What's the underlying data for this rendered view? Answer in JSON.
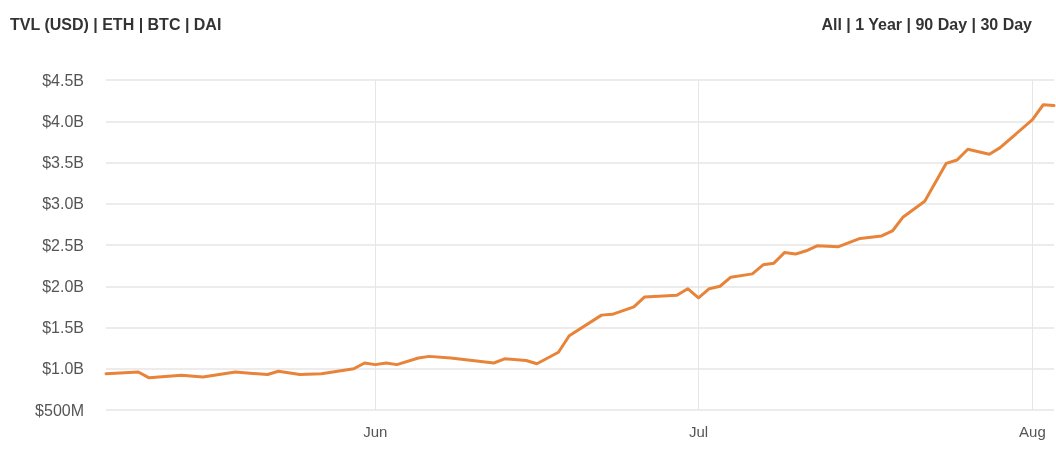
{
  "chart_data": {
    "type": "line",
    "annotations": [
      "TVL (USD) | ETH | BTC | DAI",
      "All | 1 Year | 90 Day | 30 Day"
    ],
    "x": [
      "--05-07",
      "--05-10",
      "--05-11",
      "--05-14",
      "--05-16",
      "--05-19",
      "--05-22",
      "--05-23",
      "--05-25",
      "--05-27",
      "--05-30",
      "--05-31",
      "--06-01",
      "--06-02",
      "--06-03",
      "--06-05",
      "--06-06",
      "--06-08",
      "--06-10",
      "--06-12",
      "--06-13",
      "--06-15",
      "--06-16",
      "--06-18",
      "--06-19",
      "--06-22",
      "--06-23",
      "--06-25",
      "--06-26",
      "--06-29",
      "--06-30",
      "--07-01",
      "--07-02",
      "--07-03",
      "--07-04",
      "--07-06",
      "--07-07",
      "--07-08",
      "--07-09",
      "--07-10",
      "--07-11",
      "--07-12",
      "--07-14",
      "--07-16",
      "--07-18",
      "--07-19",
      "--07-20",
      "--07-22",
      "--07-24",
      "--07-25",
      "--07-26",
      "--07-28",
      "--07-29",
      "--08-01",
      "--08-02",
      "--08-03"
    ],
    "series": [
      {
        "color": "#e8843a",
        "values": [
          940000000,
          960000000,
          890000000,
          920000000,
          900000000,
          960000000,
          930000000,
          970000000,
          930000000,
          940000000,
          1000000000,
          1070000000,
          1050000000,
          1070000000,
          1050000000,
          1130000000,
          1150000000,
          1130000000,
          1100000000,
          1070000000,
          1120000000,
          1100000000,
          1060000000,
          1200000000,
          1400000000,
          1650000000,
          1660000000,
          1750000000,
          1870000000,
          1890000000,
          1970000000,
          1860000000,
          1970000000,
          2000000000,
          2110000000,
          2150000000,
          2260000000,
          2280000000,
          2410000000,
          2390000000,
          2430000000,
          2490000000,
          2480000000,
          2580000000,
          2610000000,
          2670000000,
          2840000000,
          3030000000,
          3490000000,
          3530000000,
          3660000000,
          3600000000,
          3680000000,
          4020000000,
          4200000000,
          4190000000
        ]
      }
    ],
    "xlim": [
      "--05-07",
      "--08-03"
    ],
    "xticks": [
      {
        "value": "--06-01",
        "label": "Jun"
      },
      {
        "value": "--07-01",
        "label": "Jul"
      },
      {
        "value": "--08-01",
        "label": "Aug"
      }
    ],
    "ylim": [
      500000000,
      4500000000
    ],
    "yticks": [
      {
        "value": 500000000,
        "label": "$500M"
      },
      {
        "value": 1000000000,
        "label": "$1.0B"
      },
      {
        "value": 1500000000,
        "label": "$1.5B"
      },
      {
        "value": 2000000000,
        "label": "$2.0B"
      },
      {
        "value": 2500000000,
        "label": "$2.5B"
      },
      {
        "value": 3000000000,
        "label": "$3.0B"
      },
      {
        "value": 3500000000,
        "label": "$3.5B"
      },
      {
        "value": 4000000000,
        "label": "$4.0B"
      },
      {
        "value": 4500000000,
        "label": "$4.5B"
      }
    ],
    "grid": true,
    "marker": "none",
    "line_style": "solid"
  }
}
